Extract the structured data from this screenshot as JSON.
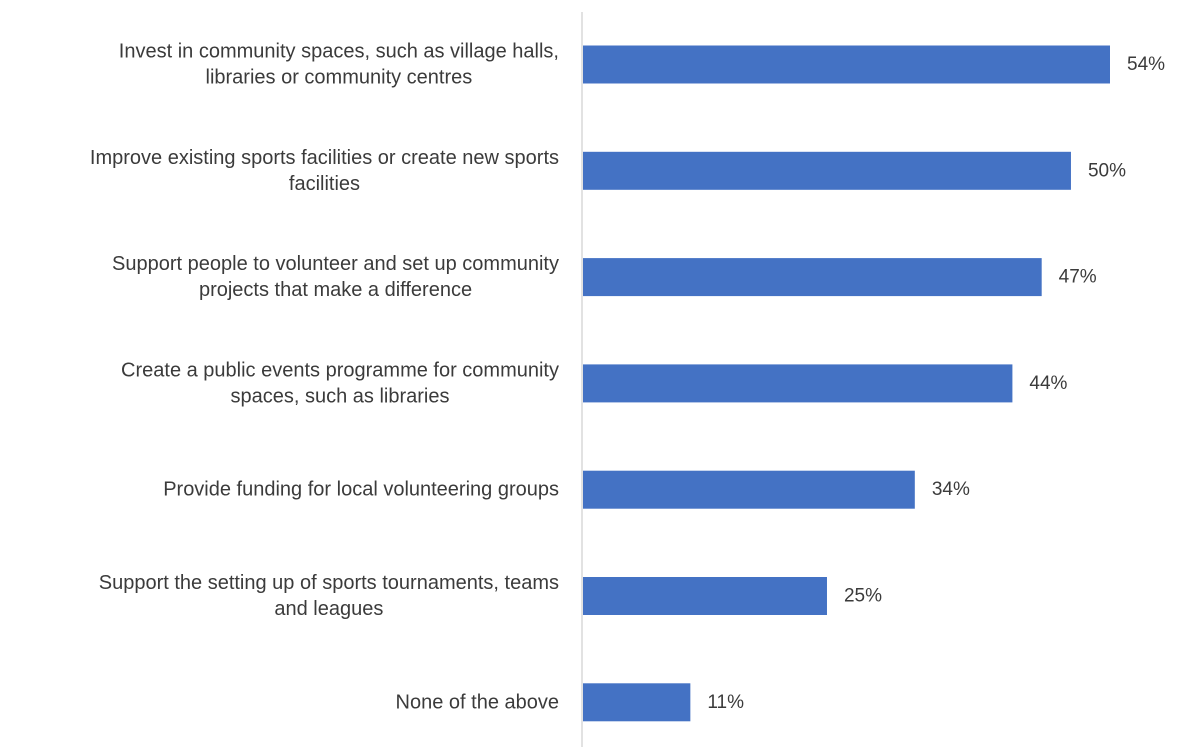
{
  "chart_data": {
    "type": "bar",
    "orientation": "horizontal",
    "categories": [
      [
        "Invest in community spaces, such as village halls,",
        "libraries or community centres"
      ],
      [
        "Improve existing sports facilities or create new sports",
        "facilities"
      ],
      [
        "Support people to volunteer and set up community",
        "projects that make a difference"
      ],
      [
        "Create a public events programme for community",
        "spaces, such as libraries"
      ],
      [
        "Provide funding for local volunteering groups"
      ],
      [
        "Support the setting up of sports tournaments, teams",
        "and leagues"
      ],
      [
        "None of the above"
      ]
    ],
    "values": [
      54,
      50,
      47,
      44,
      34,
      25,
      11
    ],
    "value_labels": [
      "54%",
      "50%",
      "47%",
      "44%",
      "34%",
      "25%",
      "11%"
    ],
    "unit": "%",
    "title": "",
    "xlabel": "",
    "ylabel": "",
    "xlim": [
      0,
      60
    ],
    "grid": false,
    "legend": "none",
    "colors": {
      "bar": "#4472C4",
      "axis": "#d9d9d9",
      "text": "#3b3b3b"
    }
  }
}
